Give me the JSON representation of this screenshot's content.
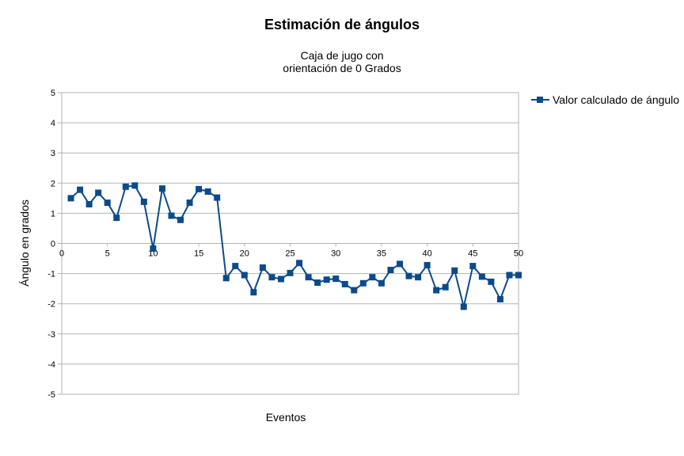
{
  "chart_data": {
    "type": "line",
    "title": "Estimación de ángulos",
    "subtitle_lines": [
      "Caja de jugo con",
      "orientación de 0 Grados"
    ],
    "xlabel": "Eventos",
    "ylabel": "Ángulo en grados",
    "xlim": [
      0,
      50
    ],
    "ylim": [
      -5,
      5
    ],
    "x_ticks": [
      0,
      5,
      10,
      15,
      20,
      25,
      30,
      35,
      40,
      45,
      50
    ],
    "y_ticks": [
      5,
      4,
      3,
      2,
      1,
      0,
      -1,
      -2,
      -3,
      -4,
      -5
    ],
    "grid": "horizontal",
    "legend_position": "right",
    "series": [
      {
        "name": "Valor calculado de ángulo",
        "color": "#0b4a8b",
        "marker": "square",
        "x": [
          1,
          2,
          3,
          4,
          5,
          6,
          7,
          8,
          9,
          10,
          11,
          12,
          13,
          14,
          15,
          16,
          17,
          18,
          19,
          20,
          21,
          22,
          23,
          24,
          25,
          26,
          27,
          28,
          29,
          30,
          31,
          32,
          33,
          34,
          35,
          36,
          37,
          38,
          39,
          40,
          41,
          42,
          43,
          44,
          45,
          46,
          47,
          48,
          49,
          50
        ],
        "values": [
          1.5,
          1.78,
          1.3,
          1.68,
          1.35,
          0.85,
          1.88,
          1.92,
          1.38,
          -0.17,
          1.82,
          0.92,
          0.78,
          1.35,
          1.8,
          1.72,
          1.52,
          -1.15,
          -0.75,
          -1.05,
          -1.62,
          -0.8,
          -1.12,
          -1.18,
          -0.98,
          -0.65,
          -1.12,
          -1.3,
          -1.2,
          -1.17,
          -1.35,
          -1.55,
          -1.32,
          -1.12,
          -1.32,
          -0.88,
          -0.68,
          -1.08,
          -1.12,
          -0.72,
          -1.55,
          -1.45,
          -0.9,
          -2.1,
          -0.75,
          -1.1,
          -1.27,
          -1.85,
          -1.05,
          -1.05
        ]
      }
    ]
  }
}
